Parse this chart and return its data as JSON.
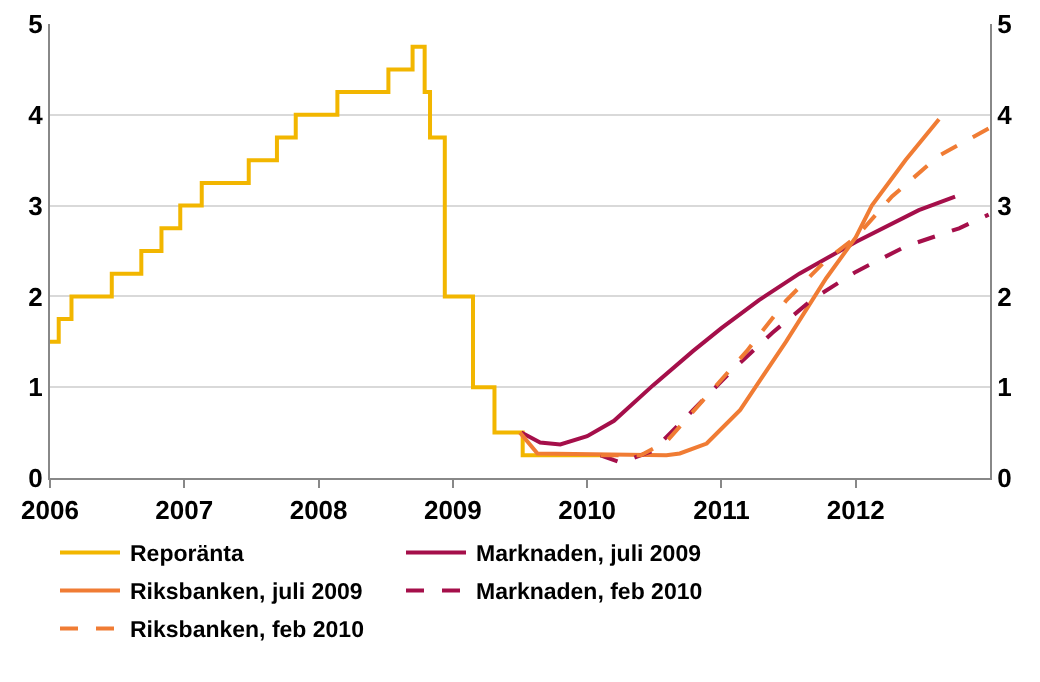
{
  "chart_data": {
    "type": "line",
    "xlim": [
      2006,
      2013
    ],
    "xticks": [
      2006,
      2007,
      2008,
      2009,
      2010,
      2011,
      2012
    ],
    "ylim": [
      0,
      5
    ],
    "yticks": [
      0,
      1,
      2,
      3,
      4,
      5
    ],
    "y2lim": [
      0,
      5
    ],
    "y2ticks": [
      0,
      1,
      2,
      3,
      4,
      5
    ],
    "grid": "y",
    "legend": "bottom",
    "marker": "none",
    "series": [
      {
        "name": "Reporänta",
        "type": "step",
        "color": "#f2b600",
        "line_style": "solid",
        "x": [
          2006,
          2006.065,
          2006.16,
          2006.46,
          2006.68,
          2006.83,
          2006.97,
          2007.13,
          2007.48,
          2007.69,
          2007.83,
          2008.14,
          2008.52,
          2008.7,
          2008.79,
          2008.83,
          2008.94,
          2009.15,
          2009.31,
          2009.52,
          2010.2
        ],
        "values": [
          1.5,
          1.75,
          2,
          2.25,
          2.5,
          2.75,
          3,
          3.25,
          3.5,
          3.75,
          4,
          4.25,
          4.5,
          4.75,
          4.25,
          3.75,
          2,
          1,
          0.5,
          0.25,
          0.25
        ]
      },
      {
        "name": "Marknaden, juli 2009",
        "color": "#a50f4a",
        "line_style": "solid",
        "x": [
          2009.51,
          2009.65,
          2009.8,
          2010,
          2010.2,
          2010.49,
          2010.79,
          2011,
          2011.28,
          2011.58,
          2012,
          2012.47,
          2012.74
        ],
        "values": [
          0.5,
          0.39,
          0.37,
          0.46,
          0.63,
          1.02,
          1.4,
          1.65,
          1.96,
          2.25,
          2.6,
          2.95,
          3.1
        ]
      },
      {
        "name": "Riksbanken, juli 2009",
        "color": "#f07c34",
        "line_style": "solid",
        "x": [
          2009.5,
          2009.63,
          2010.59,
          2010.69,
          2010.89,
          2011.14,
          2011.48,
          2011.78,
          2012,
          2012.12,
          2012.37,
          2012.62
        ],
        "values": [
          0.5,
          0.27,
          0.25,
          0.27,
          0.38,
          0.75,
          1.5,
          2.2,
          2.65,
          3,
          3.5,
          3.95
        ]
      },
      {
        "name": "Marknaden, feb 2010",
        "color": "#a50f4a",
        "line_style": "dashed",
        "x": [
          2010.1,
          2010.25,
          2010.49,
          2010.79,
          2011.09,
          2011.38,
          2011.68,
          2012,
          2012.37,
          2012.77,
          2012.99
        ],
        "values": [
          0.25,
          0.17,
          0.3,
          0.75,
          1.2,
          1.6,
          1.97,
          2.27,
          2.55,
          2.75,
          2.9
        ]
      },
      {
        "name": "Riksbanken, feb 2010",
        "color": "#f07c34",
        "line_style": "dashed",
        "x": [
          2010.1,
          2010.4,
          2010.59,
          2010.89,
          2011.19,
          2011.48,
          2011.78,
          2012,
          2012.27,
          2012.62,
          2012.99
        ],
        "values": [
          0.25,
          0.25,
          0.4,
          0.9,
          1.4,
          1.95,
          2.4,
          2.65,
          3.1,
          3.55,
          3.85
        ]
      }
    ]
  }
}
